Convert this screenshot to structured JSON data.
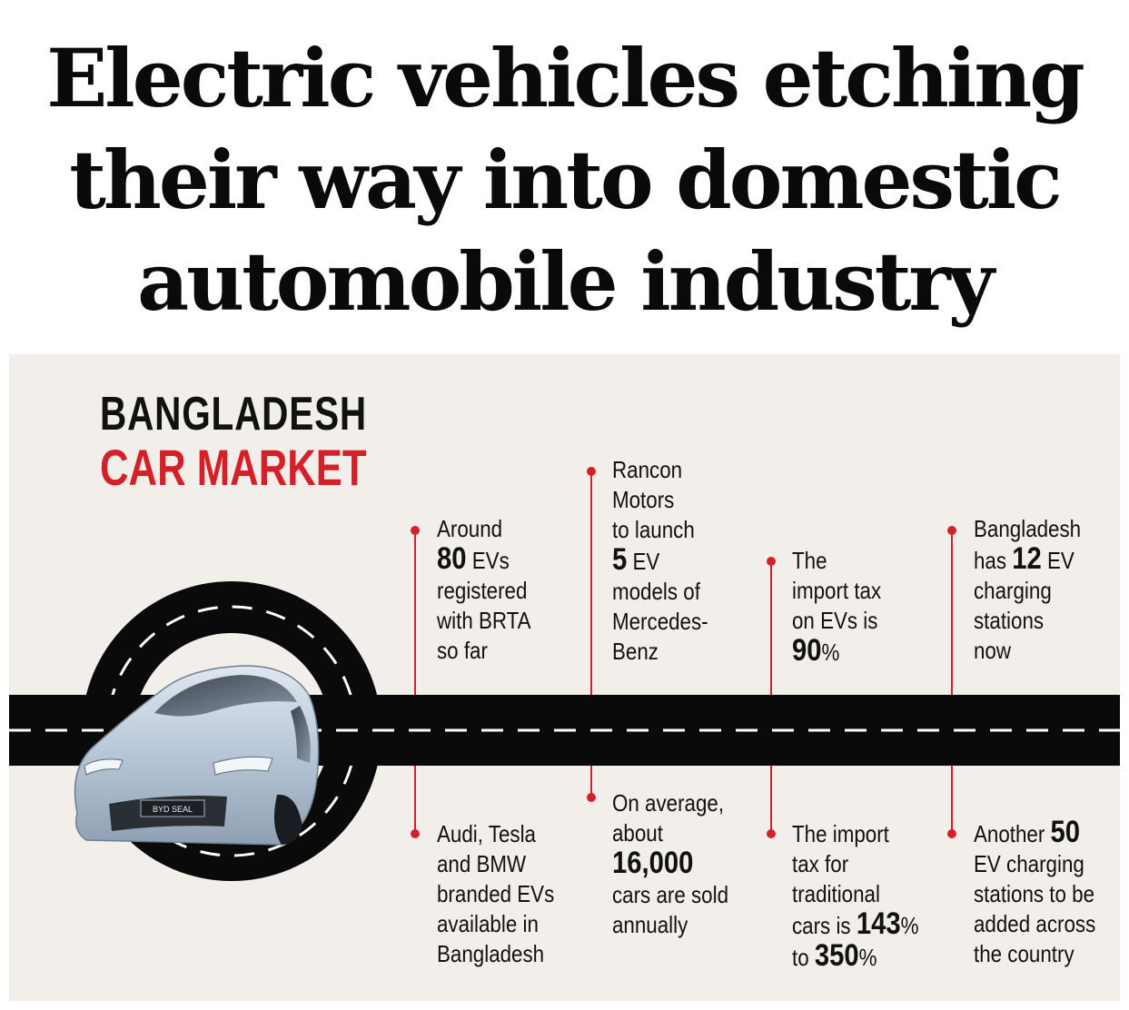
{
  "headline": {
    "line1": "Electric vehicles etching",
    "line2": "their way into domestic",
    "line3": "automobile industry"
  },
  "infographic": {
    "title_line1": "BANGLADESH",
    "title_line2": "CAR MARKET",
    "accent_color": "#d42029",
    "road_color": "#0a0a0a",
    "car_badge": "BYD SEAL",
    "facts_top": [
      {
        "before": "Around\n",
        "num": "80",
        "after": " EVs\nregistered\nwith BRTA\nso far"
      },
      {
        "before": "Rancon\nMotors\nto launch\n",
        "num": "5",
        "after": " EV\nmodels of\nMercedes-\nBenz"
      },
      {
        "before": "The\nimport tax\non EVs is\n",
        "num": "90",
        "after": "%"
      },
      {
        "before": "Bangladesh\nhas ",
        "num": "12",
        "after": " EV\ncharging\nstations\nnow"
      }
    ],
    "facts_bottom": [
      {
        "before": "Audi, Tesla\nand BMW\nbranded EVs\navailable in\nBangladesh",
        "num": "",
        "after": ""
      },
      {
        "before": "On average,\nabout\n",
        "num": "16,000",
        "after": "\ncars are sold\nannually"
      },
      {
        "before": "The import\ntax for\ntraditional\ncars is ",
        "num": "143",
        "after": "%\nto ",
        "num2": "350",
        "after2": "%"
      },
      {
        "before": "Another ",
        "num": "50",
        "after": "\nEV charging\nstations to be\nadded across\nthe country"
      }
    ]
  }
}
